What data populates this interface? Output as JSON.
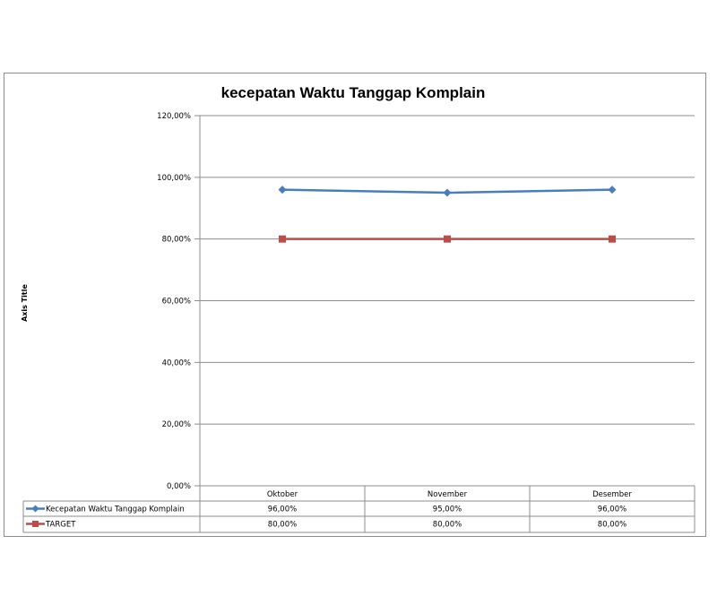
{
  "chart_data": {
    "type": "line",
    "title": "kecepatan Waktu Tanggap Komplain",
    "ylabel": "Axis Title",
    "xlabel": "",
    "categories": [
      "Oktober",
      "November",
      "Desember"
    ],
    "ylim": [
      0,
      1.2
    ],
    "yticks": [
      "0,00%",
      "20,00%",
      "40,00%",
      "60,00%",
      "80,00%",
      "100,00%",
      "120,00%"
    ],
    "grid": true,
    "legend": "data-table",
    "series": [
      {
        "name": "Kecepatan Waktu Tanggap Komplain",
        "values": [
          0.96,
          0.95,
          0.96
        ],
        "labels": [
          "96,00%",
          "95,00%",
          "96,00%"
        ],
        "color": "#4a7ebb",
        "marker": "diamond"
      },
      {
        "name": "TARGET",
        "values": [
          0.8,
          0.8,
          0.8
        ],
        "labels": [
          "80,00%",
          "80,00%",
          "80,00%"
        ],
        "color": "#be4b48",
        "marker": "square"
      }
    ]
  }
}
